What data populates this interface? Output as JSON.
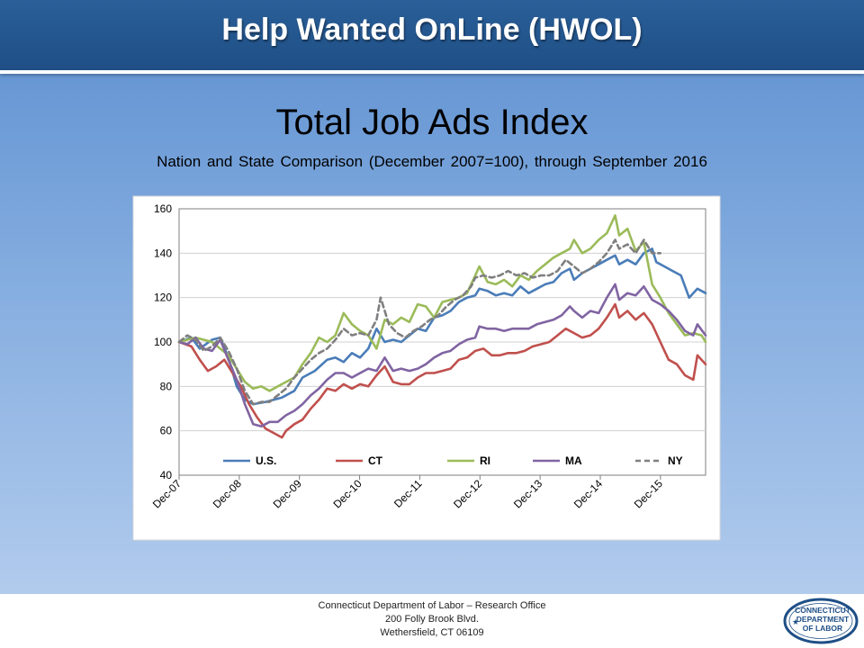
{
  "header": {
    "title": "Help Wanted OnLine (HWOL)"
  },
  "slide": {
    "title": "Total Job Ads Index",
    "subtitle": "Nation and State Comparison (December 2007=100), through September 2016"
  },
  "footer": {
    "line1": "Connecticut Department of Labor – Research Office",
    "line2": "200 Folly Brook Blvd.",
    "line3": "Wethersfield, CT 06109"
  },
  "logo": {
    "line1": "CONNECTICUT",
    "line2": "DEPARTMENT",
    "line3": "OF LABOR"
  },
  "chart_data": {
    "type": "line",
    "title": "",
    "xlabel": "",
    "ylabel": "",
    "ylim": [
      40,
      160
    ],
    "yticks": [
      40,
      60,
      80,
      100,
      120,
      140,
      160
    ],
    "xticks": [
      "Dec-07",
      "Dec-08",
      "Dec-09",
      "Dec-10",
      "Dec-11",
      "Dec-12",
      "Dec-13",
      "Dec-14",
      "Dec-15"
    ],
    "x_start": "Dec-07",
    "x_end": "Sep-16",
    "grid": "horizontal",
    "legend": "bottom-inside",
    "series": [
      {
        "name": "U.S.",
        "color": "#4a7db8",
        "dash": false,
        "points": [
          [
            0,
            100
          ],
          [
            3,
            102
          ],
          [
            5,
            97
          ],
          [
            8,
            101
          ],
          [
            10,
            102
          ],
          [
            12,
            93
          ],
          [
            14,
            80
          ],
          [
            16,
            74
          ],
          [
            18,
            72
          ],
          [
            21,
            73
          ],
          [
            25,
            75
          ],
          [
            28,
            78
          ],
          [
            30,
            84
          ],
          [
            33,
            87
          ],
          [
            36,
            92
          ],
          [
            38,
            93
          ],
          [
            40,
            91
          ],
          [
            42,
            95
          ],
          [
            44,
            93
          ],
          [
            46,
            97
          ],
          [
            48,
            106
          ],
          [
            50,
            100
          ],
          [
            52,
            101
          ],
          [
            54,
            100
          ],
          [
            56,
            103
          ],
          [
            58,
            106
          ],
          [
            60,
            105
          ],
          [
            62,
            111
          ],
          [
            64,
            112
          ],
          [
            66,
            114
          ],
          [
            68,
            118
          ],
          [
            70,
            120
          ],
          [
            72,
            121
          ],
          [
            73,
            124
          ],
          [
            75,
            123
          ],
          [
            77,
            121
          ],
          [
            79,
            122
          ],
          [
            81,
            121
          ],
          [
            83,
            125
          ],
          [
            85,
            122
          ],
          [
            87,
            124
          ],
          [
            89,
            126
          ],
          [
            91,
            127
          ],
          [
            93,
            131
          ],
          [
            95,
            133
          ],
          [
            96,
            128
          ],
          [
            98,
            131
          ],
          [
            100,
            133
          ],
          [
            102,
            135
          ],
          [
            104,
            137
          ],
          [
            106,
            139
          ],
          [
            107,
            135
          ],
          [
            109,
            137
          ],
          [
            111,
            135
          ],
          [
            113,
            140
          ],
          [
            115,
            142
          ],
          [
            116,
            136
          ],
          [
            118,
            134
          ],
          [
            120,
            132
          ],
          [
            122,
            130
          ],
          [
            124,
            120
          ],
          [
            126,
            124
          ],
          [
            128,
            122
          ]
        ]
      },
      {
        "name": "CT",
        "color": "#c0504d",
        "dash": false,
        "points": [
          [
            0,
            100
          ],
          [
            3,
            98
          ],
          [
            5,
            92
          ],
          [
            7,
            87
          ],
          [
            9,
            89
          ],
          [
            11,
            92
          ],
          [
            13,
            86
          ],
          [
            15,
            80
          ],
          [
            17,
            72
          ],
          [
            19,
            66
          ],
          [
            21,
            61
          ],
          [
            23,
            59
          ],
          [
            25,
            57
          ],
          [
            26,
            60
          ],
          [
            28,
            63
          ],
          [
            30,
            65
          ],
          [
            32,
            70
          ],
          [
            34,
            74
          ],
          [
            36,
            79
          ],
          [
            38,
            78
          ],
          [
            40,
            81
          ],
          [
            42,
            79
          ],
          [
            44,
            81
          ],
          [
            46,
            80
          ],
          [
            48,
            85
          ],
          [
            50,
            89
          ],
          [
            52,
            82
          ],
          [
            54,
            81
          ],
          [
            56,
            81
          ],
          [
            58,
            84
          ],
          [
            60,
            86
          ],
          [
            62,
            86
          ],
          [
            64,
            87
          ],
          [
            66,
            88
          ],
          [
            68,
            92
          ],
          [
            70,
            93
          ],
          [
            72,
            96
          ],
          [
            74,
            97
          ],
          [
            76,
            94
          ],
          [
            78,
            94
          ],
          [
            80,
            95
          ],
          [
            82,
            95
          ],
          [
            84,
            96
          ],
          [
            86,
            98
          ],
          [
            88,
            99
          ],
          [
            90,
            100
          ],
          [
            92,
            103
          ],
          [
            94,
            106
          ],
          [
            96,
            104
          ],
          [
            98,
            102
          ],
          [
            100,
            103
          ],
          [
            102,
            106
          ],
          [
            104,
            111
          ],
          [
            106,
            117
          ],
          [
            107,
            111
          ],
          [
            109,
            114
          ],
          [
            111,
            110
          ],
          [
            113,
            113
          ],
          [
            115,
            108
          ],
          [
            117,
            100
          ],
          [
            119,
            92
          ],
          [
            121,
            90
          ],
          [
            123,
            85
          ],
          [
            125,
            83
          ],
          [
            126,
            94
          ],
          [
            128,
            90
          ]
        ]
      },
      {
        "name": "RI",
        "color": "#9bbb59",
        "dash": false,
        "points": [
          [
            0,
            100
          ],
          [
            2,
            101
          ],
          [
            4,
            102
          ],
          [
            6,
            101
          ],
          [
            8,
            100
          ],
          [
            10,
            97
          ],
          [
            12,
            94
          ],
          [
            14,
            88
          ],
          [
            16,
            82
          ],
          [
            18,
            79
          ],
          [
            20,
            80
          ],
          [
            22,
            78
          ],
          [
            24,
            80
          ],
          [
            26,
            82
          ],
          [
            28,
            84
          ],
          [
            30,
            90
          ],
          [
            32,
            95
          ],
          [
            34,
            102
          ],
          [
            36,
            100
          ],
          [
            38,
            103
          ],
          [
            40,
            113
          ],
          [
            42,
            108
          ],
          [
            44,
            105
          ],
          [
            46,
            103
          ],
          [
            48,
            97
          ],
          [
            50,
            110
          ],
          [
            52,
            108
          ],
          [
            54,
            111
          ],
          [
            56,
            109
          ],
          [
            58,
            117
          ],
          [
            60,
            116
          ],
          [
            62,
            111
          ],
          [
            64,
            118
          ],
          [
            66,
            119
          ],
          [
            68,
            120
          ],
          [
            70,
            122
          ],
          [
            72,
            130
          ],
          [
            73,
            134
          ],
          [
            75,
            127
          ],
          [
            77,
            126
          ],
          [
            79,
            128
          ],
          [
            81,
            125
          ],
          [
            83,
            130
          ],
          [
            85,
            128
          ],
          [
            87,
            132
          ],
          [
            89,
            135
          ],
          [
            91,
            138
          ],
          [
            93,
            140
          ],
          [
            95,
            142
          ],
          [
            96,
            146
          ],
          [
            98,
            140
          ],
          [
            100,
            142
          ],
          [
            102,
            146
          ],
          [
            104,
            149
          ],
          [
            106,
            157
          ],
          [
            107,
            148
          ],
          [
            109,
            151
          ],
          [
            111,
            141
          ],
          [
            113,
            145
          ],
          [
            115,
            126
          ],
          [
            117,
            120
          ],
          [
            119,
            113
          ],
          [
            121,
            108
          ],
          [
            123,
            103
          ],
          [
            125,
            104
          ],
          [
            127,
            103
          ],
          [
            128,
            100
          ]
        ]
      },
      {
        "name": "MA",
        "color": "#8064a2",
        "dash": false,
        "points": [
          [
            0,
            100
          ],
          [
            2,
            99
          ],
          [
            4,
            102
          ],
          [
            6,
            97
          ],
          [
            8,
            96
          ],
          [
            10,
            101
          ],
          [
            12,
            92
          ],
          [
            14,
            83
          ],
          [
            16,
            72
          ],
          [
            18,
            63
          ],
          [
            20,
            62
          ],
          [
            22,
            64
          ],
          [
            24,
            64
          ],
          [
            26,
            67
          ],
          [
            28,
            69
          ],
          [
            30,
            72
          ],
          [
            32,
            76
          ],
          [
            34,
            79
          ],
          [
            36,
            83
          ],
          [
            38,
            86
          ],
          [
            40,
            86
          ],
          [
            42,
            84
          ],
          [
            44,
            86
          ],
          [
            46,
            88
          ],
          [
            48,
            87
          ],
          [
            50,
            93
          ],
          [
            52,
            87
          ],
          [
            54,
            88
          ],
          [
            56,
            87
          ],
          [
            58,
            88
          ],
          [
            60,
            90
          ],
          [
            62,
            93
          ],
          [
            64,
            95
          ],
          [
            66,
            96
          ],
          [
            68,
            99
          ],
          [
            70,
            101
          ],
          [
            72,
            102
          ],
          [
            73,
            107
          ],
          [
            75,
            106
          ],
          [
            77,
            106
          ],
          [
            79,
            105
          ],
          [
            81,
            106
          ],
          [
            83,
            106
          ],
          [
            85,
            106
          ],
          [
            87,
            108
          ],
          [
            89,
            109
          ],
          [
            91,
            110
          ],
          [
            93,
            112
          ],
          [
            95,
            116
          ],
          [
            96,
            114
          ],
          [
            98,
            111
          ],
          [
            100,
            114
          ],
          [
            102,
            113
          ],
          [
            104,
            120
          ],
          [
            106,
            126
          ],
          [
            107,
            119
          ],
          [
            109,
            122
          ],
          [
            111,
            121
          ],
          [
            113,
            125
          ],
          [
            115,
            119
          ],
          [
            117,
            117
          ],
          [
            119,
            114
          ],
          [
            121,
            110
          ],
          [
            123,
            105
          ],
          [
            125,
            103
          ],
          [
            126,
            108
          ],
          [
            128,
            103
          ]
        ]
      },
      {
        "name": "NY",
        "color": "#7f7f7f",
        "dash": true,
        "points": [
          [
            0,
            100
          ],
          [
            2,
            103
          ],
          [
            4,
            101
          ],
          [
            6,
            96
          ],
          [
            8,
            98
          ],
          [
            10,
            102
          ],
          [
            12,
            96
          ],
          [
            14,
            88
          ],
          [
            16,
            78
          ],
          [
            18,
            72
          ],
          [
            20,
            73
          ],
          [
            22,
            73
          ],
          [
            24,
            76
          ],
          [
            26,
            79
          ],
          [
            28,
            84
          ],
          [
            30,
            88
          ],
          [
            32,
            92
          ],
          [
            34,
            95
          ],
          [
            36,
            97
          ],
          [
            38,
            101
          ],
          [
            40,
            106
          ],
          [
            42,
            103
          ],
          [
            44,
            104
          ],
          [
            46,
            103
          ],
          [
            48,
            110
          ],
          [
            49,
            120
          ],
          [
            51,
            108
          ],
          [
            53,
            104
          ],
          [
            55,
            102
          ],
          [
            57,
            105
          ],
          [
            59,
            107
          ],
          [
            61,
            110
          ],
          [
            63,
            112
          ],
          [
            65,
            116
          ],
          [
            67,
            119
          ],
          [
            69,
            121
          ],
          [
            71,
            125
          ],
          [
            72,
            129
          ],
          [
            74,
            130
          ],
          [
            76,
            129
          ],
          [
            78,
            130
          ],
          [
            80,
            132
          ],
          [
            82,
            130
          ],
          [
            84,
            131
          ],
          [
            86,
            129
          ],
          [
            88,
            130
          ],
          [
            90,
            130
          ],
          [
            92,
            132
          ],
          [
            94,
            137
          ],
          [
            96,
            134
          ],
          [
            98,
            131
          ],
          [
            100,
            133
          ],
          [
            102,
            136
          ],
          [
            104,
            140
          ],
          [
            106,
            146
          ],
          [
            107,
            142
          ],
          [
            109,
            144
          ],
          [
            111,
            140
          ],
          [
            113,
            146
          ],
          [
            115,
            140
          ],
          [
            117,
            140
          ]
        ]
      }
    ]
  }
}
